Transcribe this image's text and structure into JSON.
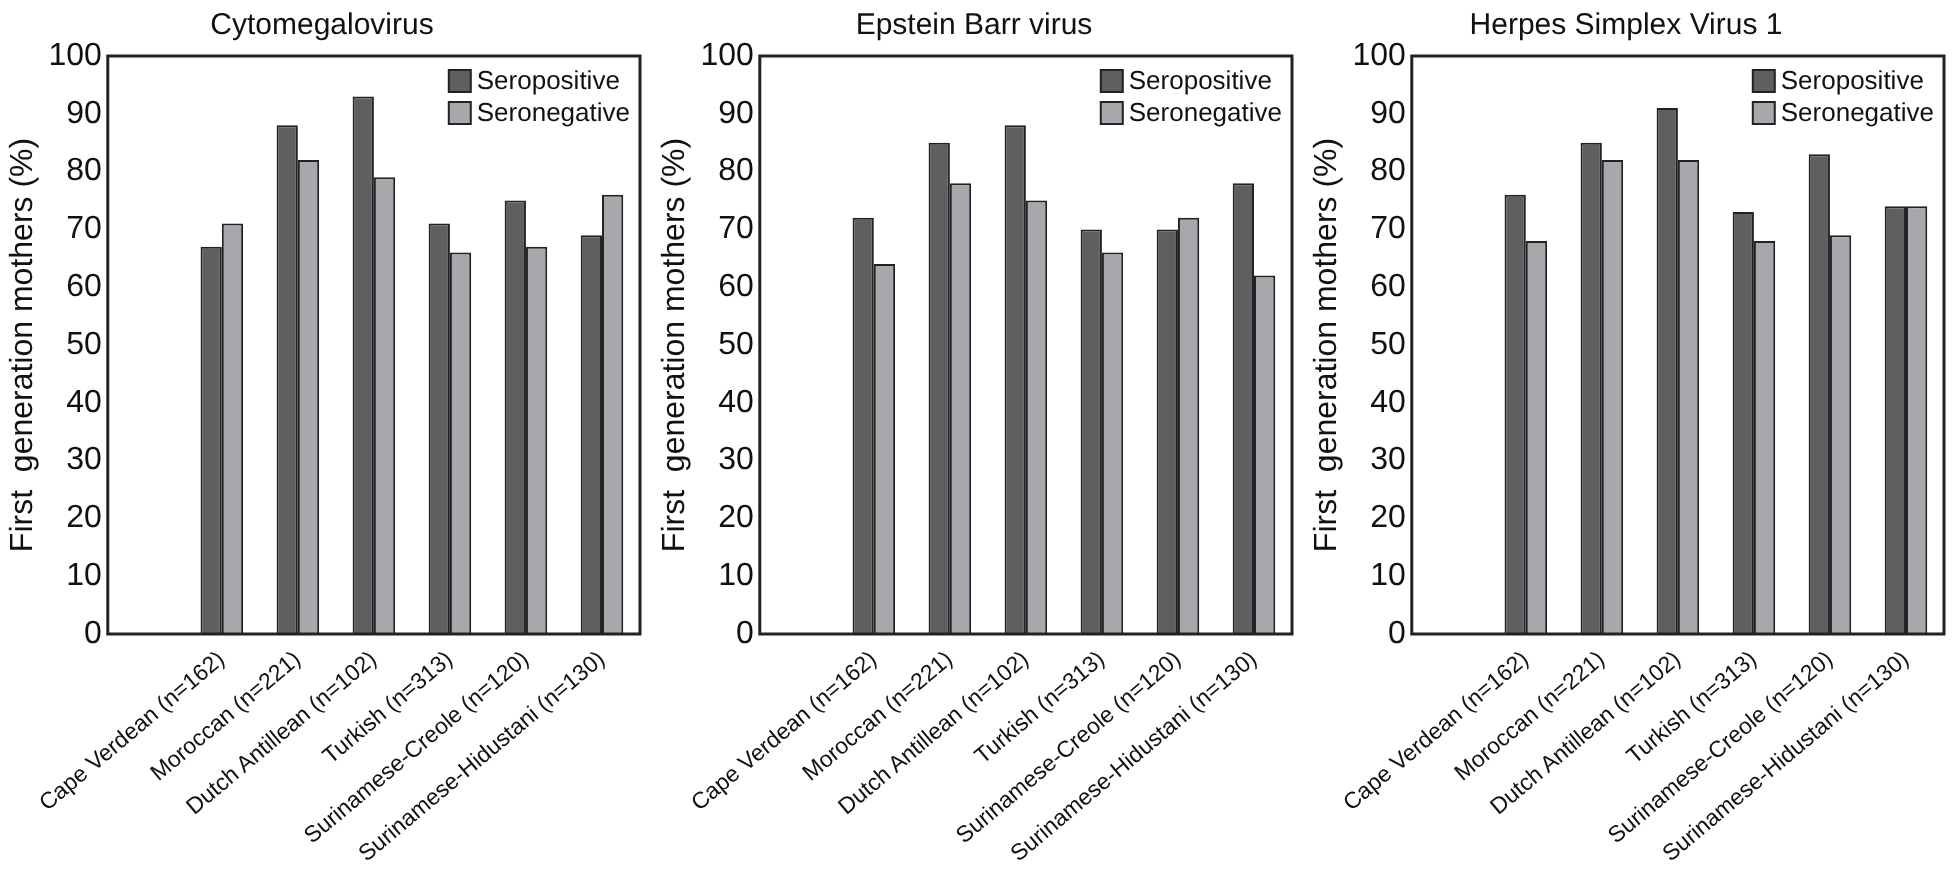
{
  "chart_data": [
    {
      "type": "bar",
      "title": "Cytomegalovirus",
      "ylabel": "First  generation mothers (%)",
      "categories": [
        null,
        "Cape Verdean (n=162)",
        "Moroccan (n=221)",
        "Dutch Antillean (n=102)",
        "Turkish (n=313)",
        "Surinamese-Creole (n=120)",
        "Surinamese-Hidustani (n=130)"
      ],
      "series": [
        {
          "name": "Seropositive",
          "color": "#5f5f62",
          "values": [
            null,
            67,
            88,
            93,
            71,
            75,
            69
          ]
        },
        {
          "name": "Seronegative",
          "color": "#a7a8ab",
          "values": [
            null,
            71,
            82,
            79,
            66,
            67,
            76
          ]
        }
      ],
      "ylim": [
        0,
        100
      ],
      "yticks": [
        0,
        10,
        20,
        30,
        40,
        50,
        60,
        70,
        80,
        90,
        100
      ],
      "grid": false,
      "legend": "top right"
    },
    {
      "type": "bar",
      "title": "Epstein Barr virus",
      "ylabel": "First  generation mothers (%)",
      "categories": [
        null,
        "Cape Verdean (n=162)",
        "Moroccan (n=221)",
        "Dutch Antillean (n=102)",
        "Turkish (n=313)",
        "Surinamese-Creole (n=120)",
        "Surinamese-Hidustani (n=130)"
      ],
      "series": [
        {
          "name": "Seropositive",
          "color": "#5f5f62",
          "values": [
            null,
            72,
            85,
            88,
            70,
            70,
            78
          ]
        },
        {
          "name": "Seronegative",
          "color": "#a7a8ab",
          "values": [
            null,
            64,
            78,
            75,
            66,
            72,
            62
          ]
        }
      ],
      "ylim": [
        0,
        100
      ],
      "yticks": [
        0,
        10,
        20,
        30,
        40,
        50,
        60,
        70,
        80,
        90,
        100
      ],
      "grid": false,
      "legend": "top right"
    },
    {
      "type": "bar",
      "title": "Herpes Simplex Virus 1",
      "ylabel": "First  generation mothers (%)",
      "categories": [
        null,
        "Cape Verdean (n=162)",
        "Moroccan (n=221)",
        "Dutch Antillean (n=102)",
        "Turkish (n=313)",
        "Surinamese-Creole (n=120)",
        "Surinamese-Hidustani (n=130)"
      ],
      "series": [
        {
          "name": "Seropositive",
          "color": "#5f5f62",
          "values": [
            null,
            76,
            85,
            91,
            73,
            83,
            74
          ]
        },
        {
          "name": "Seronegative",
          "color": "#a7a8ab",
          "values": [
            null,
            68,
            82,
            82,
            68,
            69,
            74
          ]
        }
      ],
      "ylim": [
        0,
        100
      ],
      "yticks": [
        0,
        10,
        20,
        30,
        40,
        50,
        60,
        70,
        80,
        90,
        100
      ],
      "grid": false,
      "legend": "top right"
    }
  ]
}
